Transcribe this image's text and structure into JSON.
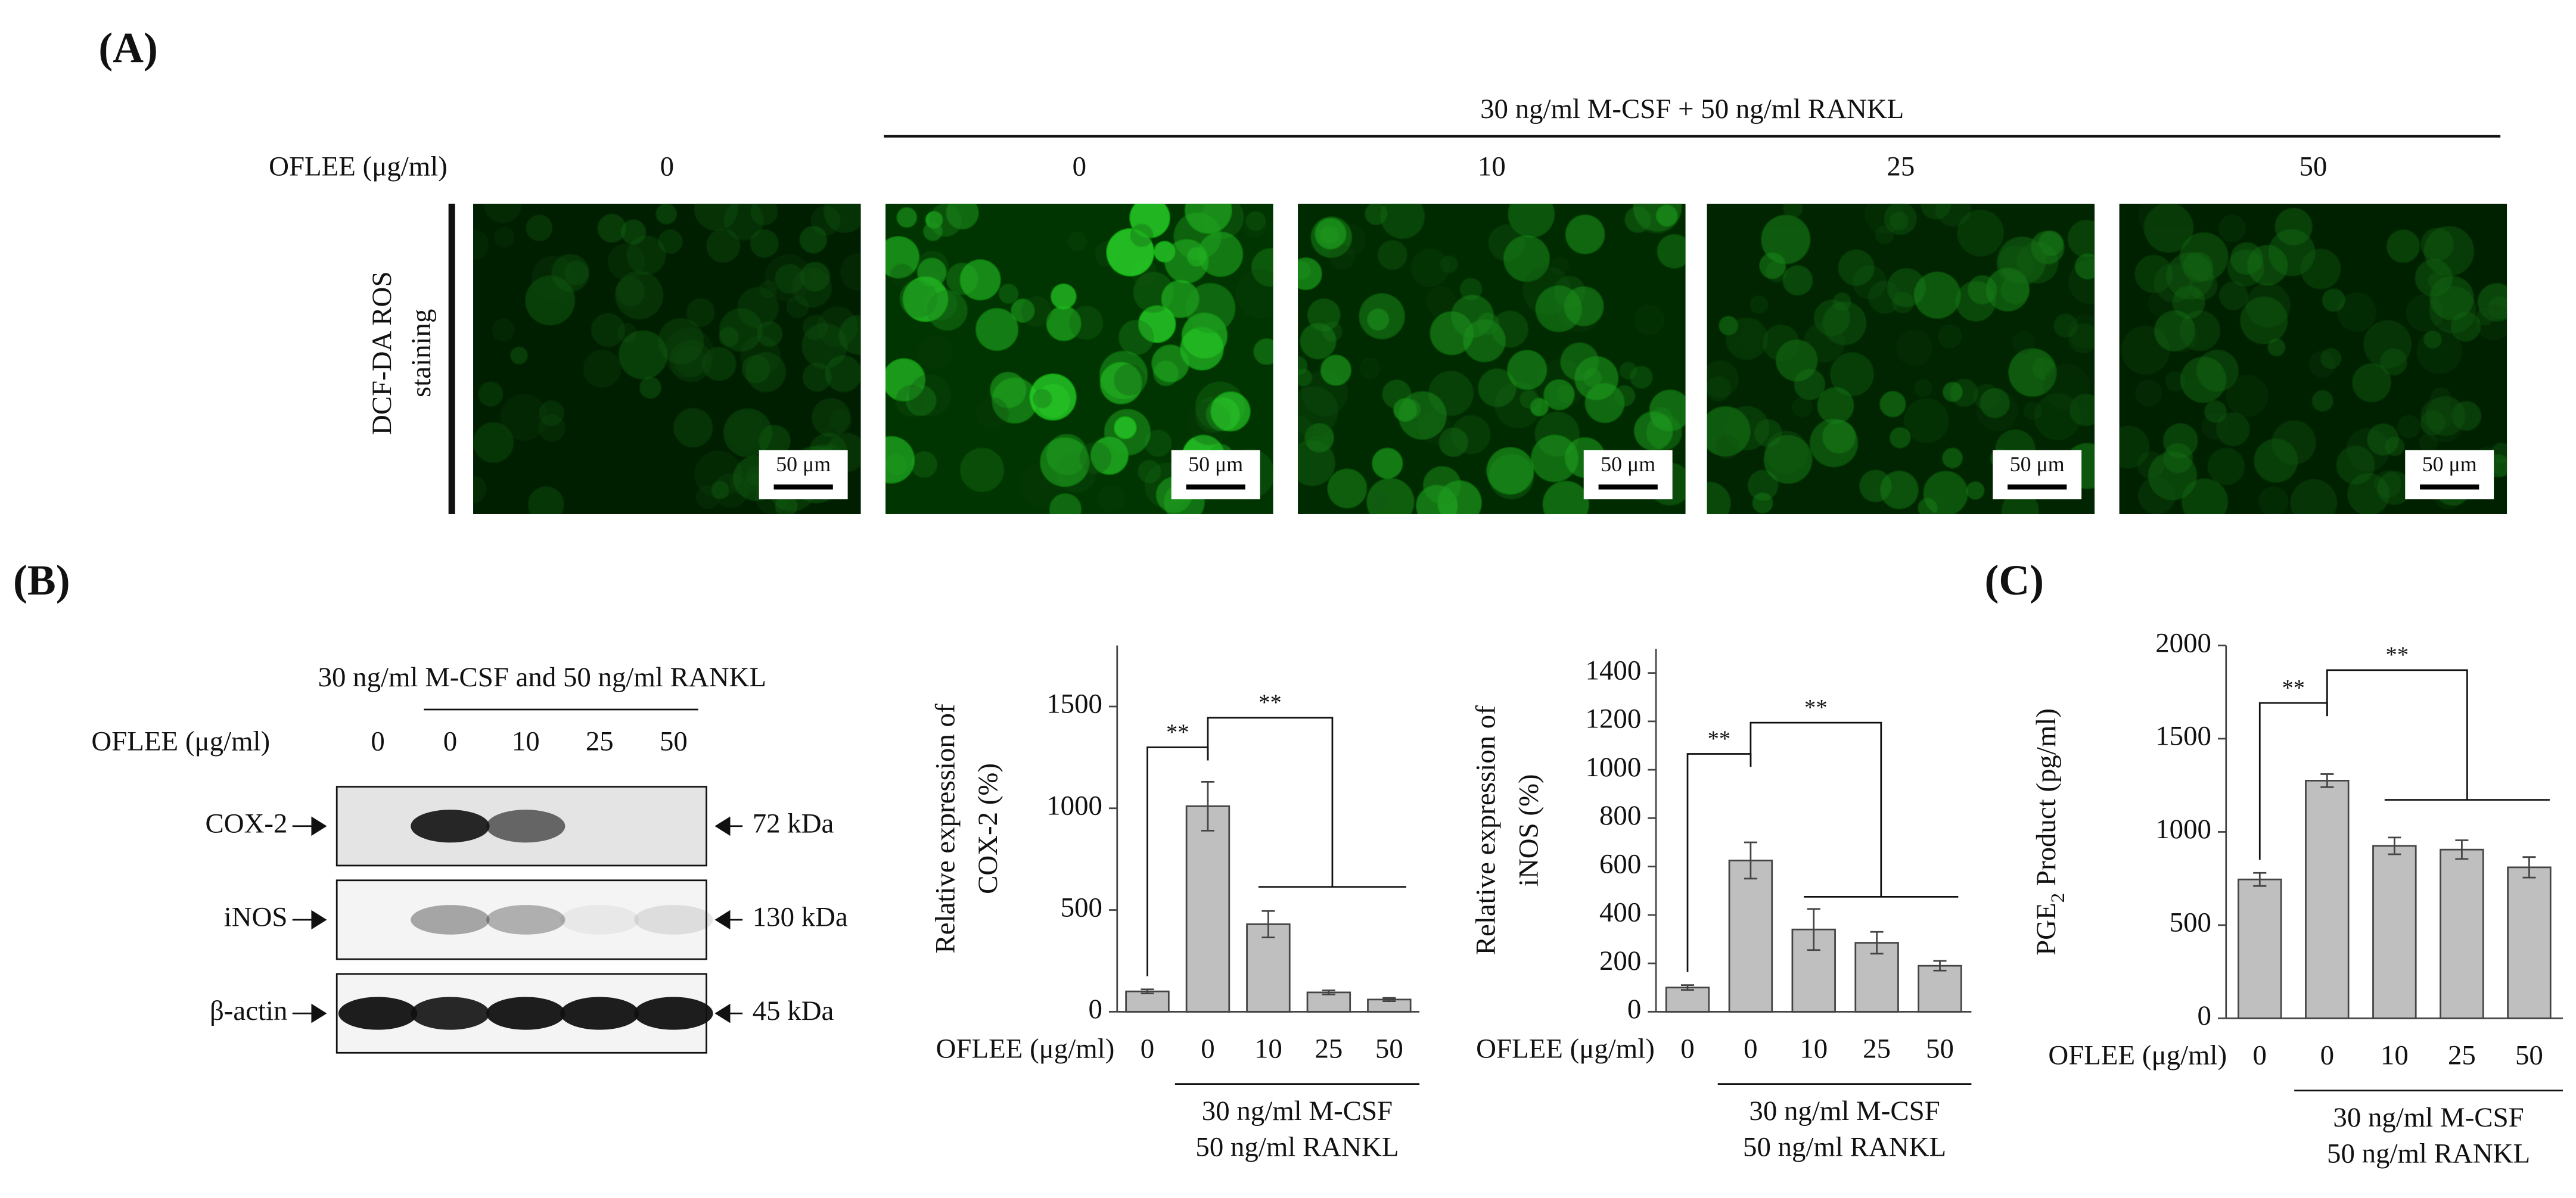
{
  "panel_a": {
    "label": "(A)",
    "treatment": "30 ng/ml M-CSF + 50 ng/ml RANKL",
    "dose_label": "OFLEE (μg/ml)",
    "doses": [
      "0",
      "0",
      "10",
      "25",
      "50"
    ],
    "row_label": [
      "DCF-DA ROS",
      "staining"
    ],
    "scale_bar": "50 μm"
  },
  "panel_b": {
    "label": "(B)",
    "treatment": "30 ng/ml M-CSF and 50 ng/ml RANKL",
    "dose_label": "OFLEE (μg/ml)",
    "doses": [
      "0",
      "0",
      "10",
      "25",
      "50"
    ],
    "proteins": [
      "COX-2",
      "iNOS",
      "β-actin"
    ],
    "sizes": [
      "72 kDa",
      "130 kDa",
      "45 kDa"
    ]
  },
  "panel_c": {
    "label": "(C)"
  },
  "chart_data": [
    {
      "type": "bar",
      "ylabel": [
        "Relative expression of",
        "COX-2 (%)"
      ],
      "x_label": "OFLEE (μg/ml)",
      "categories": [
        "0",
        "0",
        "10",
        "25",
        "50"
      ],
      "group_label": [
        "30 ng/ml M-CSF",
        "50 ng/ml RANKL"
      ],
      "values": [
        100,
        1010,
        430,
        95,
        60
      ],
      "errors": [
        10,
        120,
        65,
        10,
        8
      ],
      "color": "#bfbfbf",
      "ylim": [
        0,
        1800
      ],
      "yticks": [
        0,
        500,
        1000,
        1500
      ],
      "annotations": [
        "**",
        "**"
      ]
    },
    {
      "type": "bar",
      "ylabel": [
        "Relative expression of",
        "iNOS (%)"
      ],
      "x_label": "OFLEE (μg/ml)",
      "categories": [
        "0",
        "0",
        "10",
        "25",
        "50"
      ],
      "group_label": [
        "30 ng/ml M-CSF",
        "50 ng/ml RANKL"
      ],
      "values": [
        100,
        625,
        340,
        285,
        190
      ],
      "errors": [
        10,
        75,
        85,
        45,
        20
      ],
      "color": "#bfbfbf",
      "ylim": [
        0,
        1500
      ],
      "yticks": [
        0,
        200,
        400,
        600,
        800,
        1000,
        1200,
        1400
      ],
      "annotations": [
        "**",
        "**"
      ]
    },
    {
      "type": "bar",
      "ylabel": [
        "PGE",
        "2",
        " Product  (pg/ml)"
      ],
      "x_label": "OFLEE (μg/ml)",
      "categories": [
        "0",
        "0",
        "10",
        "25",
        "50"
      ],
      "group_label": [
        "30 ng/ml M-CSF",
        "50 ng/ml RANKL"
      ],
      "values": [
        745,
        1275,
        925,
        905,
        810
      ],
      "errors": [
        35,
        35,
        45,
        50,
        55
      ],
      "color": "#bfbfbf",
      "ylim": [
        0,
        2000
      ],
      "yticks": [
        0,
        500,
        1000,
        1500,
        2000
      ],
      "annotations": [
        "**",
        "**"
      ]
    }
  ]
}
